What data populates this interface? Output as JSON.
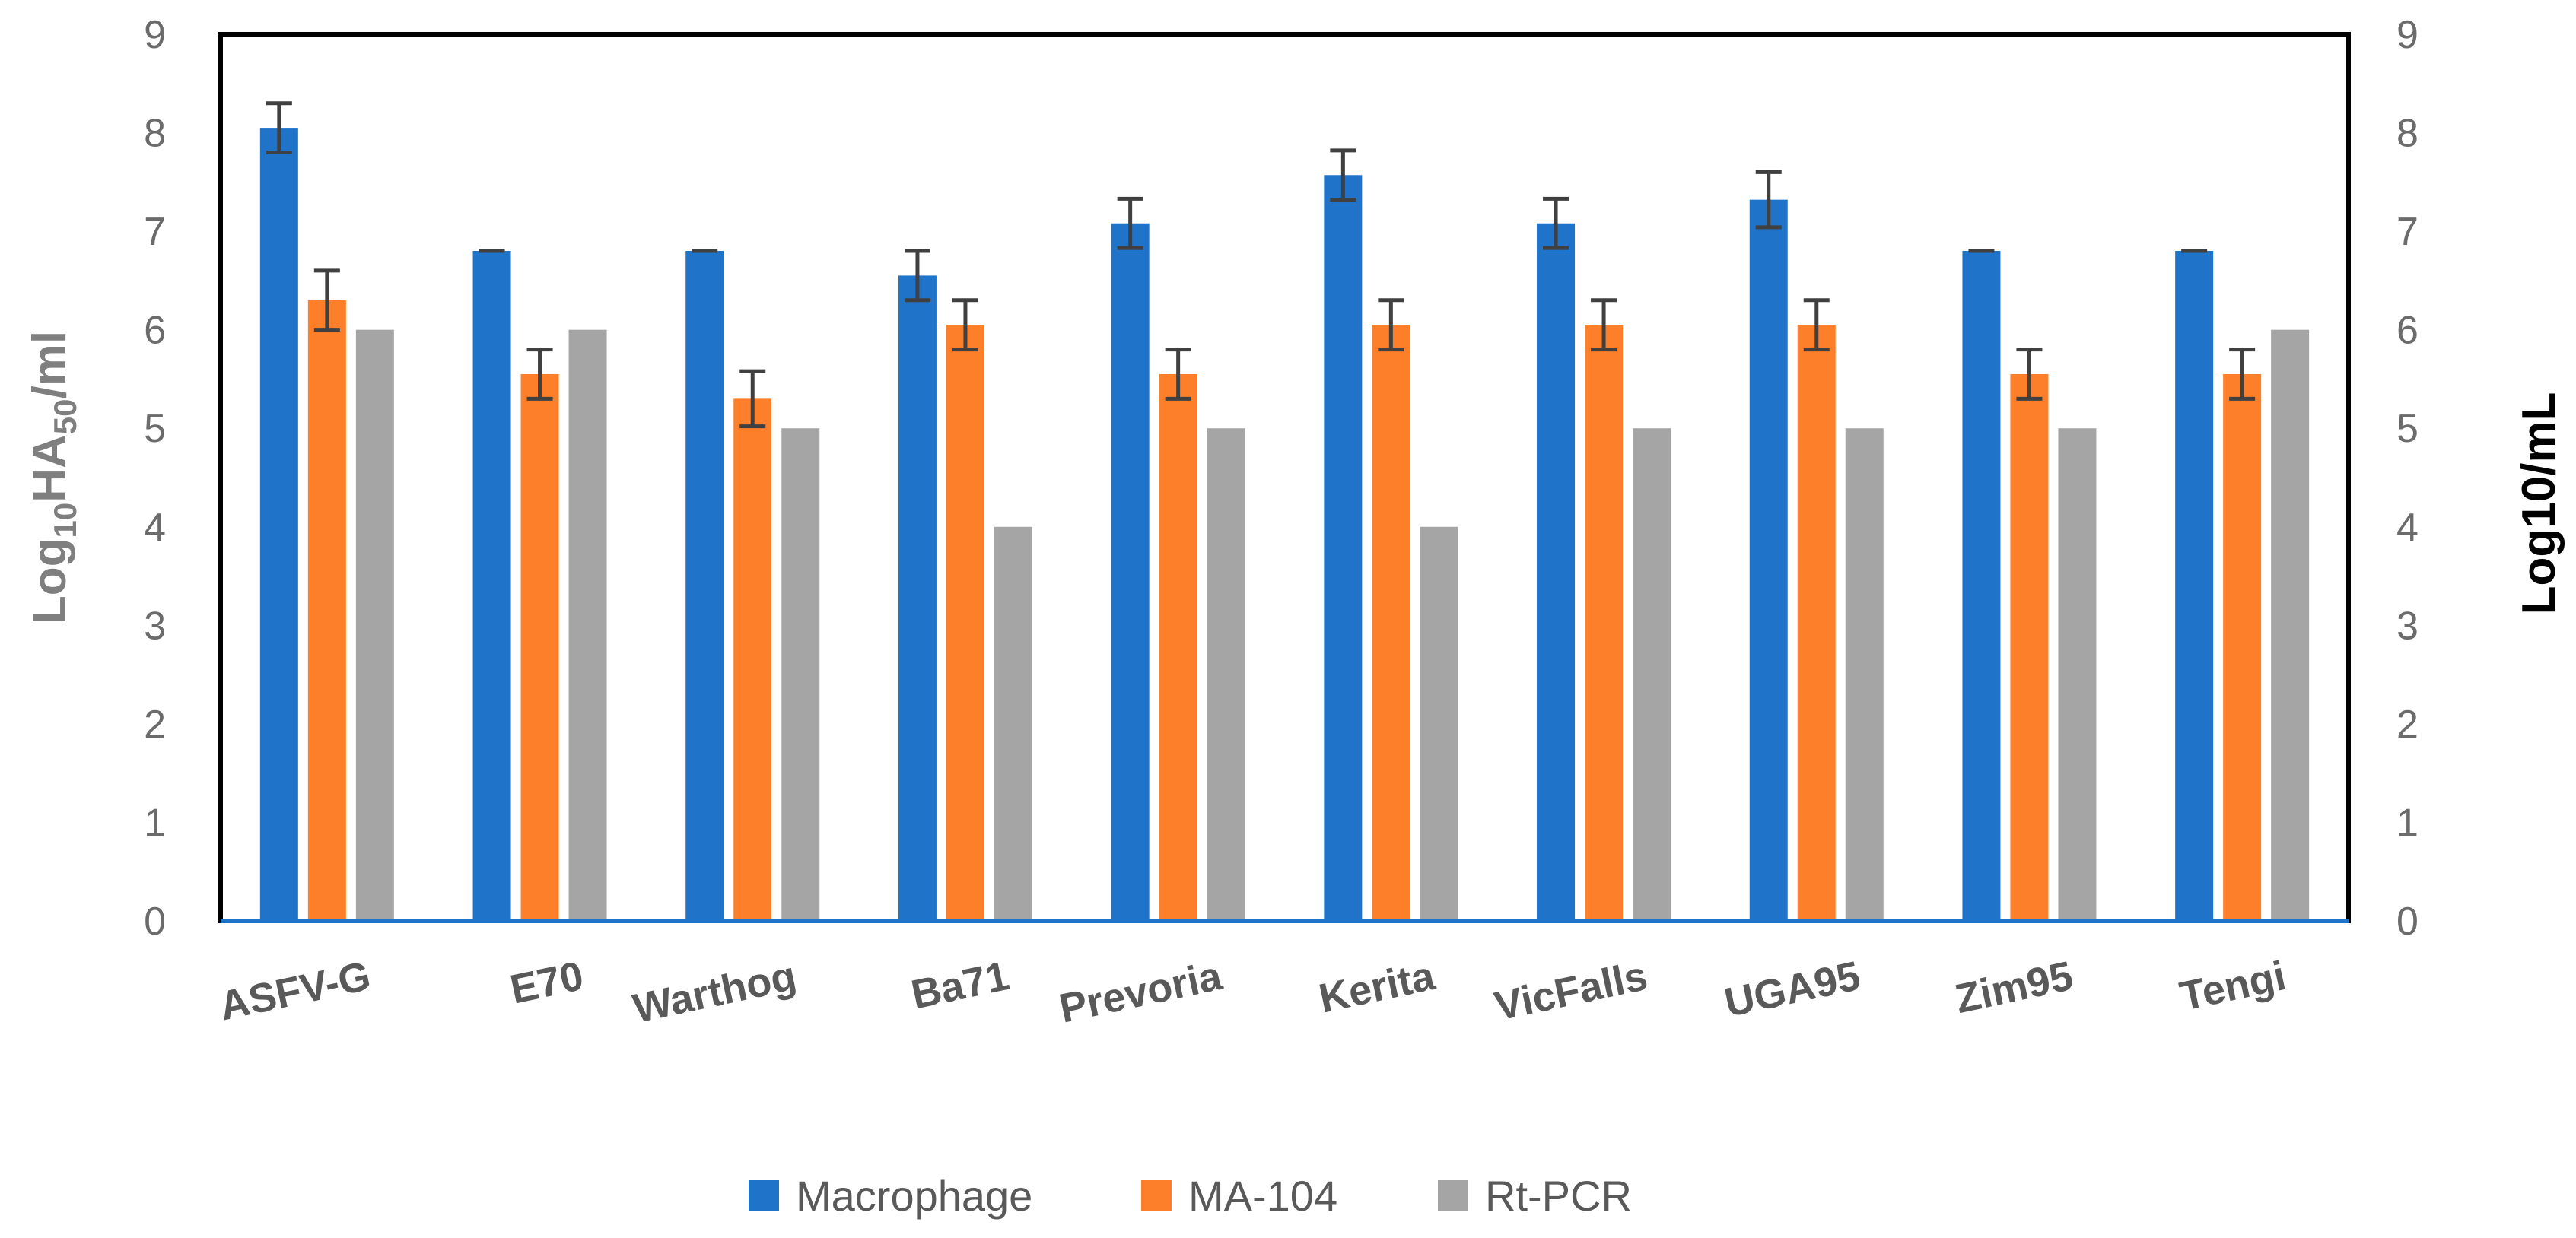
{
  "chart_data": {
    "type": "bar",
    "title": "",
    "xlabel": "",
    "ylabel": {
      "prefix": "Log",
      "sub1": "10",
      "mid": "HA",
      "sub2": "50",
      "suffix": "/ml"
    },
    "y2label": "Log10/mL",
    "ylim": [
      0,
      9
    ],
    "yticks": [
      "0",
      "1",
      "2",
      "3",
      "4",
      "5",
      "6",
      "7",
      "8",
      "9"
    ],
    "categories": [
      "ASFV-G",
      "E70",
      "Warthog",
      "Ba71",
      "Prevoria",
      "Kerita",
      "VicFalls",
      "UGA95",
      "Zim95",
      "Tengi"
    ],
    "series": [
      {
        "name": "Macrophage",
        "color": "#1f73c9",
        "values": [
          8.05,
          6.8,
          6.8,
          6.55,
          7.08,
          7.57,
          7.08,
          7.32,
          6.8,
          6.8
        ],
        "errors": [
          0.25,
          0,
          0,
          0.25,
          0.25,
          0.25,
          0.25,
          0.28,
          0,
          0
        ]
      },
      {
        "name": "MA-104",
        "color": "#fd7f2a",
        "values": [
          6.3,
          5.55,
          5.3,
          6.05,
          5.55,
          6.05,
          6.05,
          6.05,
          5.55,
          5.55
        ],
        "errors": [
          0.3,
          0.25,
          0.28,
          0.25,
          0.25,
          0.25,
          0.25,
          0.25,
          0.25,
          0.25
        ]
      },
      {
        "name": "Rt-PCR",
        "color": "#a5a5a5",
        "values": [
          6,
          6,
          5,
          4,
          5,
          4,
          5,
          5,
          5,
          6
        ],
        "errors": [
          0,
          0,
          0,
          0,
          0,
          0,
          0,
          0,
          0,
          0
        ]
      }
    ],
    "legend_position": "bottom",
    "colors": {
      "axis_bottom": "#1f73c9",
      "frame": "#000000",
      "error_bar": "#404040"
    }
  }
}
